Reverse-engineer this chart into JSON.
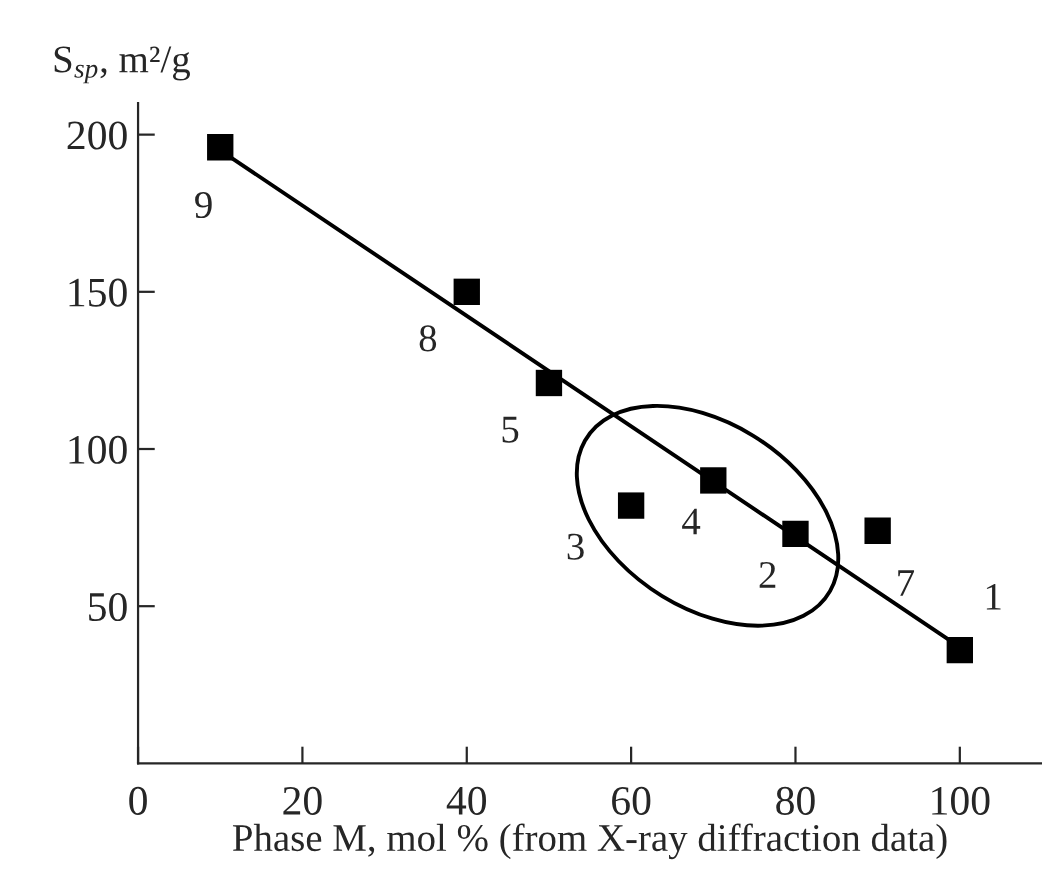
{
  "chart_data": {
    "type": "scatter",
    "xlabel": "Phase M, mol % (from X-ray diffraction data)",
    "ylabel": "S$_{sp}$, m²/g",
    "series": [
      {
        "color": "#000000",
        "marker": "square",
        "x": [
          100,
          80,
          60,
          70,
          50,
          90,
          40,
          10
        ],
        "values": [
          36,
          73,
          82,
          90,
          121,
          74,
          150,
          196
        ]
      },
      {
        "type": "line",
        "color": "#000000",
        "marker": "none",
        "line_style": "solid",
        "x": [
          10,
          100
        ],
        "values": [
          195,
          37
        ]
      }
    ],
    "annotations": [
      {
        "text": "1",
        "x": 100,
        "y": 36
      },
      {
        "text": "2",
        "x": 80,
        "y": 73
      },
      {
        "text": "3",
        "x": 60,
        "y": 82
      },
      {
        "text": "4",
        "x": 70,
        "y": 90
      },
      {
        "text": "5",
        "x": 50,
        "y": 121
      },
      {
        "text": "7",
        "x": 90,
        "y": 74
      },
      {
        "text": "8",
        "x": 40,
        "y": 150
      },
      {
        "text": "9",
        "x": 10,
        "y": 196
      }
    ],
    "xlim": [
      0,
      110
    ],
    "xticks": [
      0,
      20,
      40,
      60,
      80,
      100
    ],
    "ylim": [
      0,
      210
    ],
    "yticks": [
      50,
      100,
      150,
      200
    ],
    "grid": false,
    "legend": false
  }
}
